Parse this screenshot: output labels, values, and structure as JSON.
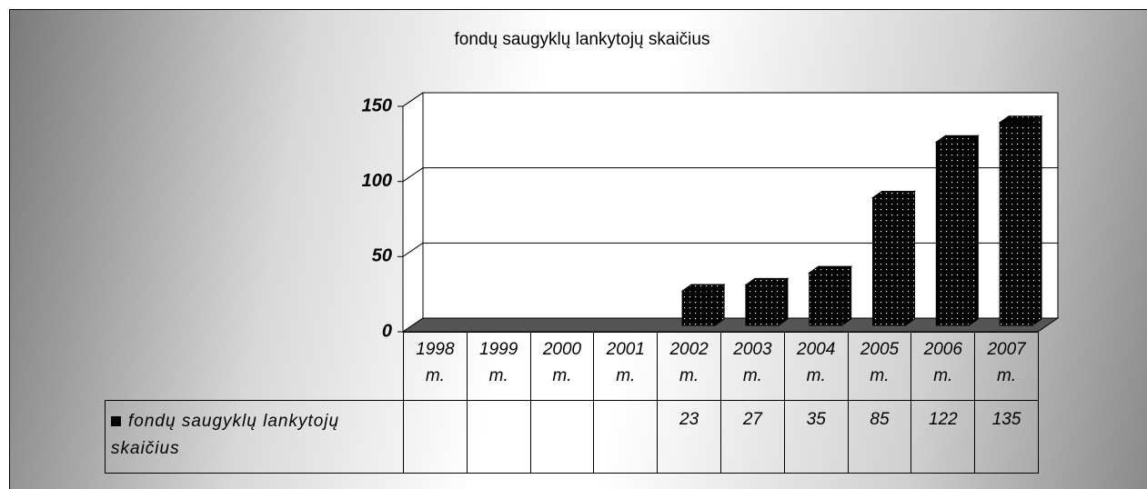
{
  "chart_data": {
    "type": "bar",
    "title": "fondų saugyklų lankytojų skaičius",
    "categories": [
      "1998 m.",
      "1999 m.",
      "2000 m.",
      "2001 m.",
      "2002 m.",
      "2003 m.",
      "2004 m.",
      "2005 m.",
      "2006 m.",
      "2007 m."
    ],
    "series": [
      {
        "name": "fondų saugyklų lankytojų skaičius",
        "color": "#000000",
        "values": [
          null,
          null,
          null,
          null,
          23,
          27,
          35,
          85,
          122,
          135
        ]
      }
    ],
    "ylim": [
      0,
      150
    ],
    "yticks": [
      0,
      50,
      100,
      150
    ],
    "grid": true
  }
}
